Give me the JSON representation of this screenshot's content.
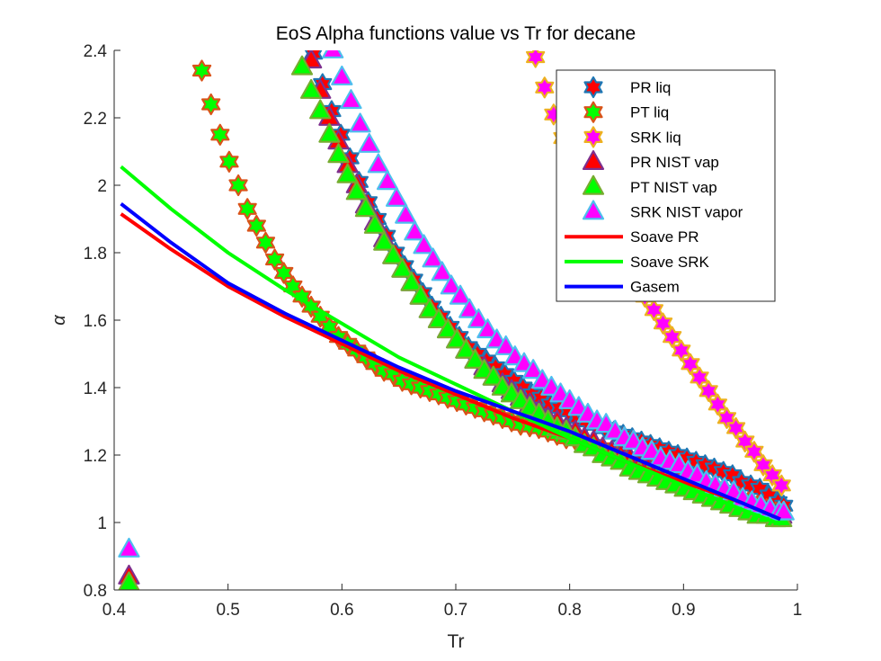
{
  "chart_data": {
    "type": "line",
    "title": "EoS Alpha functions value vs Tr for decane",
    "xlabel": "Tr",
    "ylabel": "α",
    "xlim": [
      0.4,
      1.0
    ],
    "ylim": [
      0.8,
      2.4
    ],
    "xticks": [
      "0.4",
      "0.5",
      "0.6",
      "0.7",
      "0.8",
      "0.9",
      "1"
    ],
    "yticks": [
      "0.8",
      "1",
      "1.2",
      "1.4",
      "1.6",
      "1.8",
      "2",
      "2.2",
      "2.4"
    ],
    "grid": false,
    "legend_position": "top-right",
    "series": [
      {
        "name": "PR liq",
        "style": "marker",
        "marker": "hexagram",
        "edge_color": "#1f77b4",
        "face_color": "#ff0000",
        "x": [
          0.575,
          0.583,
          0.591,
          0.599,
          0.607,
          0.615,
          0.623,
          0.631,
          0.639,
          0.647,
          0.655,
          0.663,
          0.671,
          0.679,
          0.687,
          0.695,
          0.703,
          0.711,
          0.719,
          0.727,
          0.735,
          0.743,
          0.751,
          0.759,
          0.767,
          0.775,
          0.783,
          0.791,
          0.799,
          0.807,
          0.815,
          0.823,
          0.831,
          0.839,
          0.847,
          0.855,
          0.863,
          0.871,
          0.879,
          0.887,
          0.895,
          0.903,
          0.911,
          0.919,
          0.927,
          0.935,
          0.943,
          0.951,
          0.959,
          0.967,
          0.975,
          0.983,
          0.988
        ],
        "y": [
          2.39,
          2.3,
          2.22,
          2.15,
          2.08,
          2.01,
          1.95,
          1.9,
          1.85,
          1.8,
          1.76,
          1.72,
          1.68,
          1.64,
          1.61,
          1.58,
          1.55,
          1.52,
          1.5,
          1.48,
          1.46,
          1.44,
          1.42,
          1.4,
          1.38,
          1.37,
          1.35,
          1.34,
          1.33,
          1.31,
          1.3,
          1.29,
          1.28,
          1.27,
          1.26,
          1.25,
          1.24,
          1.23,
          1.22,
          1.21,
          1.2,
          1.19,
          1.18,
          1.17,
          1.16,
          1.15,
          1.14,
          1.12,
          1.11,
          1.1,
          1.08,
          1.06,
          1.05
        ]
      },
      {
        "name": "PT liq",
        "style": "marker",
        "marker": "hexagram",
        "edge_color": "#d95319",
        "face_color": "#00ff00",
        "x": [
          0.477,
          0.485,
          0.493,
          0.501,
          0.509,
          0.517,
          0.525,
          0.533,
          0.541,
          0.549,
          0.557,
          0.565,
          0.573,
          0.581,
          0.589,
          0.597,
          0.605,
          0.613,
          0.621,
          0.629,
          0.637,
          0.645,
          0.653,
          0.661,
          0.669,
          0.677,
          0.685,
          0.693,
          0.701,
          0.709,
          0.717,
          0.725,
          0.733,
          0.741,
          0.749,
          0.757,
          0.765,
          0.773,
          0.781,
          0.789,
          0.797,
          0.805,
          0.813,
          0.821,
          0.829,
          0.837,
          0.845,
          0.853,
          0.861,
          0.869,
          0.877,
          0.885,
          0.893,
          0.901,
          0.909,
          0.917,
          0.925,
          0.933,
          0.941,
          0.949,
          0.957,
          0.965,
          0.973,
          0.981,
          0.986
        ],
        "y": [
          2.34,
          2.24,
          2.15,
          2.07,
          2.0,
          1.93,
          1.88,
          1.83,
          1.78,
          1.74,
          1.7,
          1.67,
          1.64,
          1.61,
          1.58,
          1.55,
          1.53,
          1.51,
          1.49,
          1.47,
          1.45,
          1.44,
          1.42,
          1.41,
          1.4,
          1.39,
          1.38,
          1.37,
          1.36,
          1.35,
          1.34,
          1.33,
          1.32,
          1.31,
          1.3,
          1.29,
          1.285,
          1.28,
          1.27,
          1.26,
          1.25,
          1.245,
          1.24,
          1.23,
          1.22,
          1.21,
          1.2,
          1.19,
          1.18,
          1.17,
          1.16,
          1.15,
          1.14,
          1.13,
          1.12,
          1.11,
          1.1,
          1.09,
          1.08,
          1.07,
          1.06,
          1.05,
          1.04,
          1.03,
          1.02
        ]
      },
      {
        "name": "SRK liq",
        "style": "marker",
        "marker": "hexagram",
        "edge_color": "#edb120",
        "face_color": "#ff00ff",
        "x": [
          0.77,
          0.778,
          0.786,
          0.794,
          0.802,
          0.81,
          0.818,
          0.826,
          0.834,
          0.842,
          0.85,
          0.858,
          0.866,
          0.874,
          0.882,
          0.89,
          0.898,
          0.906,
          0.914,
          0.922,
          0.93,
          0.938,
          0.946,
          0.954,
          0.962,
          0.97,
          0.978,
          0.986
        ],
        "y": [
          2.38,
          2.29,
          2.21,
          2.14,
          2.08,
          2.02,
          1.96,
          1.91,
          1.86,
          1.81,
          1.76,
          1.72,
          1.67,
          1.63,
          1.59,
          1.55,
          1.51,
          1.47,
          1.43,
          1.39,
          1.35,
          1.31,
          1.28,
          1.24,
          1.21,
          1.17,
          1.14,
          1.11
        ]
      },
      {
        "name": "PR NIST vap",
        "style": "marker",
        "marker": "triangle",
        "edge_color": "#7e2f8e",
        "face_color": "#ff0000",
        "x": [
          0.413,
          0.573,
          0.581,
          0.589,
          0.597,
          0.605,
          0.613,
          0.621,
          0.629,
          0.637,
          0.645,
          0.653,
          0.661,
          0.669,
          0.677,
          0.685,
          0.693,
          0.701,
          0.709,
          0.717,
          0.725,
          0.733,
          0.741,
          0.749,
          0.757,
          0.765,
          0.773,
          0.781,
          0.789,
          0.797,
          0.805,
          0.813,
          0.821,
          0.829,
          0.837,
          0.845,
          0.853,
          0.861,
          0.869,
          0.877,
          0.885,
          0.893,
          0.901,
          0.909,
          0.917,
          0.925,
          0.933,
          0.941,
          0.949,
          0.957,
          0.965,
          0.973,
          0.981,
          0.986
        ],
        "y": [
          0.84,
          2.37,
          2.28,
          2.2,
          2.13,
          2.06,
          2.0,
          1.94,
          1.89,
          1.84,
          1.79,
          1.75,
          1.71,
          1.67,
          1.63,
          1.6,
          1.57,
          1.54,
          1.51,
          1.48,
          1.46,
          1.43,
          1.41,
          1.39,
          1.37,
          1.35,
          1.33,
          1.31,
          1.3,
          1.28,
          1.27,
          1.25,
          1.24,
          1.22,
          1.21,
          1.2,
          1.19,
          1.17,
          1.16,
          1.15,
          1.14,
          1.12,
          1.11,
          1.1,
          1.09,
          1.08,
          1.07,
          1.06,
          1.05,
          1.04,
          1.03,
          1.03,
          1.02,
          1.02
        ]
      },
      {
        "name": "PT NIST vap",
        "style": "marker",
        "marker": "triangle",
        "edge_color": "#77ac30",
        "face_color": "#00ff00",
        "x": [
          0.413,
          0.565,
          0.573,
          0.581,
          0.589,
          0.597,
          0.605,
          0.613,
          0.621,
          0.629,
          0.637,
          0.645,
          0.653,
          0.661,
          0.669,
          0.677,
          0.685,
          0.693,
          0.701,
          0.709,
          0.717,
          0.725,
          0.733,
          0.741,
          0.749,
          0.757,
          0.765,
          0.773,
          0.781,
          0.789,
          0.797,
          0.805,
          0.813,
          0.821,
          0.829,
          0.837,
          0.845,
          0.853,
          0.861,
          0.869,
          0.877,
          0.885,
          0.893,
          0.901,
          0.909,
          0.917,
          0.925,
          0.933,
          0.941,
          0.949,
          0.957,
          0.965,
          0.973,
          0.981,
          0.986
        ],
        "y": [
          0.82,
          2.35,
          2.28,
          2.22,
          2.15,
          2.09,
          2.03,
          1.98,
          1.93,
          1.88,
          1.83,
          1.79,
          1.75,
          1.71,
          1.67,
          1.63,
          1.6,
          1.57,
          1.54,
          1.51,
          1.48,
          1.45,
          1.43,
          1.4,
          1.38,
          1.36,
          1.34,
          1.32,
          1.3,
          1.28,
          1.27,
          1.25,
          1.23,
          1.22,
          1.2,
          1.19,
          1.18,
          1.16,
          1.15,
          1.14,
          1.13,
          1.12,
          1.11,
          1.1,
          1.09,
          1.08,
          1.07,
          1.06,
          1.05,
          1.04,
          1.03,
          1.02,
          1.02,
          1.01,
          1.01
        ]
      },
      {
        "name": "SRK NIST vapor",
        "style": "marker",
        "marker": "triangle",
        "edge_color": "#4dbeee",
        "face_color": "#ff00ff",
        "x": [
          0.413,
          0.592,
          0.6,
          0.608,
          0.616,
          0.624,
          0.632,
          0.64,
          0.648,
          0.656,
          0.664,
          0.672,
          0.68,
          0.688,
          0.696,
          0.704,
          0.712,
          0.72,
          0.728,
          0.736,
          0.744,
          0.752,
          0.76,
          0.768,
          0.776,
          0.784,
          0.792,
          0.8,
          0.808,
          0.816,
          0.824,
          0.832,
          0.84,
          0.848,
          0.856,
          0.864,
          0.872,
          0.88,
          0.888,
          0.896,
          0.904,
          0.912,
          0.92,
          0.928,
          0.936,
          0.944,
          0.952,
          0.96,
          0.968,
          0.976,
          0.984,
          0.988
        ],
        "y": [
          0.92,
          2.4,
          2.32,
          2.25,
          2.18,
          2.12,
          2.06,
          2.01,
          1.96,
          1.91,
          1.86,
          1.82,
          1.78,
          1.74,
          1.7,
          1.67,
          1.63,
          1.6,
          1.57,
          1.54,
          1.52,
          1.49,
          1.47,
          1.45,
          1.42,
          1.4,
          1.38,
          1.36,
          1.34,
          1.32,
          1.3,
          1.29,
          1.27,
          1.25,
          1.24,
          1.22,
          1.21,
          1.19,
          1.18,
          1.17,
          1.15,
          1.14,
          1.12,
          1.11,
          1.1,
          1.09,
          1.07,
          1.06,
          1.05,
          1.04,
          1.03,
          1.03
        ]
      },
      {
        "name": "Soave PR",
        "style": "line",
        "color": "#ff0000",
        "x": [
          0.406,
          0.45,
          0.5,
          0.55,
          0.6,
          0.65,
          0.7,
          0.75,
          0.8,
          0.85,
          0.9,
          0.95,
          0.985
        ],
        "y": [
          1.915,
          1.81,
          1.7,
          1.61,
          1.53,
          1.45,
          1.38,
          1.31,
          1.25,
          1.18,
          1.12,
          1.06,
          1.01
        ]
      },
      {
        "name": "Soave SRK",
        "style": "line",
        "color": "#00ff00",
        "x": [
          0.406,
          0.45,
          0.5,
          0.55,
          0.6,
          0.65,
          0.7,
          0.75,
          0.8,
          0.85,
          0.9,
          0.95,
          0.985
        ],
        "y": [
          2.055,
          1.93,
          1.8,
          1.69,
          1.59,
          1.49,
          1.41,
          1.33,
          1.25,
          1.18,
          1.11,
          1.04,
          0.995
        ]
      },
      {
        "name": "Gasem",
        "style": "line",
        "color": "#0000ff",
        "x": [
          0.406,
          0.45,
          0.5,
          0.55,
          0.6,
          0.65,
          0.7,
          0.75,
          0.8,
          0.85,
          0.9,
          0.95,
          0.985
        ],
        "y": [
          1.945,
          1.83,
          1.71,
          1.62,
          1.54,
          1.46,
          1.39,
          1.33,
          1.27,
          1.2,
          1.13,
          1.06,
          1.01
        ]
      }
    ]
  }
}
